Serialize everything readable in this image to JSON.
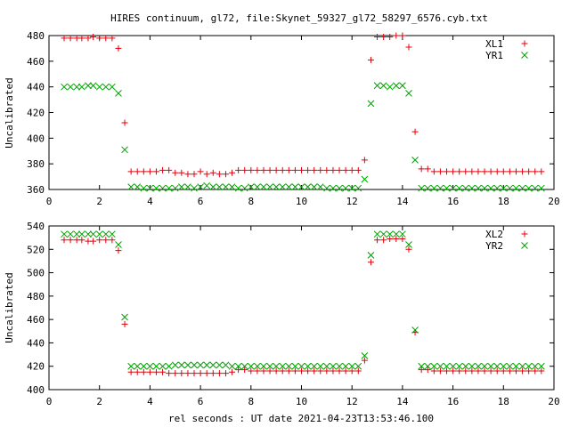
{
  "title": "HIRES continuum, gl72, file:Skynet_59327_gl72_58297_6576.cyb.txt",
  "colors": {
    "series1": "#e3000b",
    "series2": "#00a000"
  },
  "chart_data": [
    {
      "type": "scatter",
      "ylabel": "Uncalibrated",
      "xlabel": "",
      "xlim": [
        0,
        20
      ],
      "ylim": [
        360,
        480
      ],
      "xticks": [
        0,
        2,
        4,
        6,
        8,
        10,
        12,
        14,
        16,
        18,
        20
      ],
      "yticks": [
        360,
        380,
        400,
        420,
        440,
        460,
        480
      ],
      "legend_position": "top-right",
      "x": [
        0.6,
        0.85,
        1.1,
        1.3,
        1.55,
        1.75,
        2.0,
        2.25,
        2.5,
        2.75,
        3.0,
        3.25,
        3.5,
        3.75,
        4.0,
        4.25,
        4.5,
        4.75,
        5.0,
        5.25,
        5.5,
        5.75,
        6.0,
        6.25,
        6.5,
        6.75,
        7.0,
        7.25,
        7.5,
        7.75,
        8.0,
        8.25,
        8.5,
        8.75,
        9.0,
        9.25,
        9.5,
        9.75,
        10.0,
        10.25,
        10.5,
        10.75,
        11.0,
        11.25,
        11.5,
        11.75,
        12.0,
        12.25,
        12.5,
        12.75,
        13.0,
        13.25,
        13.5,
        13.75,
        14.0,
        14.25,
        14.5,
        14.75,
        15.0,
        15.25,
        15.5,
        15.75,
        16.0,
        16.25,
        16.5,
        16.75,
        17.0,
        17.25,
        17.5,
        17.75,
        18.0,
        18.25,
        18.5,
        18.75,
        19.0,
        19.25,
        19.5
      ],
      "series": [
        {
          "name": "XL1",
          "marker": "plus",
          "values": [
            478,
            478,
            478,
            478,
            478,
            479,
            478,
            478,
            478,
            470,
            412,
            374,
            374,
            374,
            374,
            374,
            375,
            375,
            373,
            373,
            372,
            372,
            374,
            372,
            373,
            372,
            372,
            373,
            375,
            375,
            375,
            375,
            375,
            375,
            375,
            375,
            375,
            375,
            375,
            375,
            375,
            375,
            375,
            375,
            375,
            375,
            375,
            375,
            383,
            461,
            479,
            479,
            479,
            480,
            480,
            471,
            405,
            376,
            376,
            374,
            374,
            374,
            374,
            374,
            374,
            374,
            374,
            374,
            374,
            374,
            374,
            374,
            374,
            374,
            374,
            374,
            374
          ]
        },
        {
          "name": "YR1",
          "marker": "cross",
          "values": [
            440,
            440,
            440,
            440,
            441,
            441,
            440,
            440,
            440,
            435,
            391,
            362,
            362,
            361,
            361,
            361,
            361,
            361,
            361,
            362,
            362,
            361,
            362,
            363,
            362,
            362,
            362,
            362,
            361,
            361,
            362,
            362,
            362,
            362,
            362,
            362,
            362,
            362,
            362,
            362,
            362,
            362,
            361,
            361,
            361,
            361,
            361,
            361,
            368,
            427,
            441,
            441,
            440,
            441,
            441,
            435,
            383,
            361,
            361,
            361,
            361,
            361,
            361,
            361,
            361,
            361,
            361,
            361,
            361,
            361,
            361,
            361,
            361,
            361,
            361,
            361,
            361
          ]
        }
      ]
    },
    {
      "type": "scatter",
      "ylabel": "Uncalibrated",
      "xlabel": "rel seconds : UT date 2021-04-23T13:53:46.100",
      "xlim": [
        0,
        20
      ],
      "ylim": [
        400,
        540
      ],
      "xticks": [
        0,
        2,
        4,
        6,
        8,
        10,
        12,
        14,
        16,
        18,
        20
      ],
      "yticks": [
        400,
        420,
        440,
        460,
        480,
        500,
        520,
        540
      ],
      "legend_position": "top-right",
      "x": [
        0.6,
        0.85,
        1.1,
        1.3,
        1.55,
        1.75,
        2.0,
        2.25,
        2.5,
        2.75,
        3.0,
        3.25,
        3.5,
        3.75,
        4.0,
        4.25,
        4.5,
        4.75,
        5.0,
        5.25,
        5.5,
        5.75,
        6.0,
        6.25,
        6.5,
        6.75,
        7.0,
        7.25,
        7.5,
        7.75,
        8.0,
        8.25,
        8.5,
        8.75,
        9.0,
        9.25,
        9.5,
        9.75,
        10.0,
        10.25,
        10.5,
        10.75,
        11.0,
        11.25,
        11.5,
        11.75,
        12.0,
        12.25,
        12.5,
        12.75,
        13.0,
        13.25,
        13.5,
        13.75,
        14.0,
        14.25,
        14.5,
        14.75,
        15.0,
        15.25,
        15.5,
        15.75,
        16.0,
        16.25,
        16.5,
        16.75,
        17.0,
        17.25,
        17.5,
        17.75,
        18.0,
        18.25,
        18.5,
        18.75,
        19.0,
        19.25,
        19.5
      ],
      "series": [
        {
          "name": "XL2",
          "marker": "plus",
          "values": [
            528,
            528,
            528,
            528,
            527,
            527,
            528,
            528,
            528,
            519,
            456,
            415,
            415,
            415,
            415,
            415,
            415,
            414,
            414,
            414,
            414,
            414,
            414,
            414,
            414,
            414,
            414,
            415,
            417,
            417,
            416,
            416,
            416,
            416,
            416,
            416,
            416,
            416,
            416,
            416,
            416,
            416,
            416,
            416,
            416,
            416,
            416,
            416,
            425,
            509,
            528,
            528,
            529,
            529,
            529,
            520,
            449,
            417,
            417,
            416,
            416,
            416,
            416,
            416,
            416,
            416,
            416,
            416,
            416,
            416,
            416,
            416,
            416,
            416,
            416,
            416,
            416
          ]
        },
        {
          "name": "YR2",
          "marker": "cross",
          "values": [
            533,
            533,
            533,
            533,
            533,
            533,
            533,
            533,
            533,
            524,
            462,
            420,
            420,
            420,
            420,
            420,
            420,
            420,
            421,
            421,
            421,
            421,
            421,
            421,
            421,
            421,
            421,
            420,
            420,
            420,
            420,
            420,
            420,
            420,
            420,
            420,
            420,
            420,
            420,
            420,
            420,
            420,
            420,
            420,
            420,
            420,
            420,
            420,
            429,
            515,
            533,
            533,
            533,
            533,
            533,
            524,
            451,
            420,
            420,
            420,
            420,
            420,
            420,
            420,
            420,
            420,
            420,
            420,
            420,
            420,
            420,
            420,
            420,
            420,
            420,
            420,
            420
          ]
        }
      ]
    }
  ]
}
